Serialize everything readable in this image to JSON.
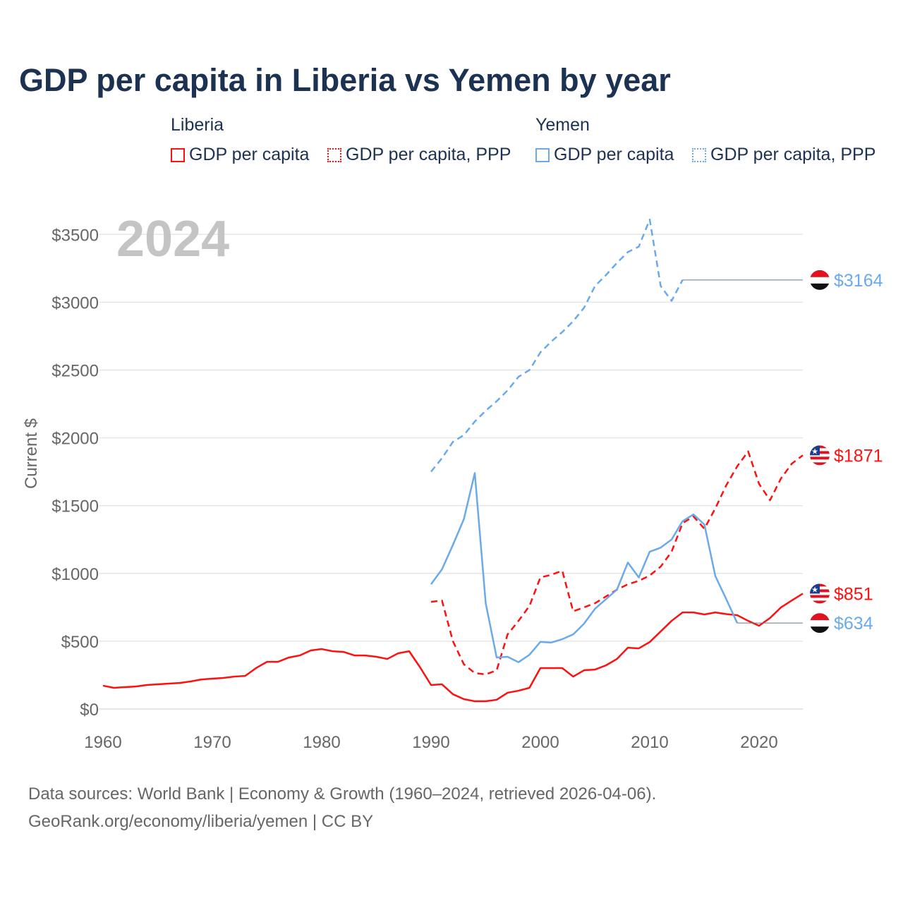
{
  "chart_data": {
    "type": "line",
    "title": "GDP per capita in Liberia vs Yemen by year",
    "ylabel": "Current $",
    "year_label": "2024",
    "xlim": [
      1960,
      2024
    ],
    "ylim": [
      0,
      3600
    ],
    "xticks": [
      1960,
      1970,
      1980,
      1990,
      2000,
      2010,
      2020
    ],
    "xtick_labels": [
      "1960",
      "1970",
      "1980",
      "1990",
      "2000",
      "2010",
      "2020"
    ],
    "yticks": [
      0,
      500,
      1000,
      1500,
      2000,
      2500,
      3000,
      3500
    ],
    "ytick_labels": [
      "$0",
      "$500",
      "$1000",
      "$1500",
      "$2000",
      "$2500",
      "$3000",
      "$3500"
    ],
    "legend": {
      "groups": [
        {
          "country": "Liberia",
          "items": [
            "GDP per capita",
            "GDP per capita, PPP"
          ]
        },
        {
          "country": "Yemen",
          "items": [
            "GDP per capita",
            "GDP per capita, PPP"
          ]
        }
      ],
      "placement": "top"
    },
    "colors": {
      "liberia": "#ff1010",
      "yemen": "#6aaaea"
    },
    "series": [
      {
        "name": "Liberia GDP per capita",
        "country": "liberia",
        "dash": false,
        "start": 1960,
        "values": [
          172,
          156,
          161,
          166,
          177,
          182,
          187,
          192,
          203,
          218,
          224,
          229,
          239,
          244,
          302,
          348,
          348,
          380,
          395,
          432,
          442,
          426,
          421,
          395,
          395,
          385,
          369,
          411,
          426,
          307,
          177,
          182,
          109,
          73,
          57,
          57,
          68,
          120,
          135,
          156,
          302,
          302,
          302,
          239,
          286,
          291,
          322,
          369,
          452,
          447,
          494,
          572,
          650,
          712,
          712,
          697,
          712,
          700,
          692,
          650,
          614,
          671,
          749,
          801,
          851
        ],
        "end_label": "$851",
        "extend_to": 2024
      },
      {
        "name": "Liberia GDP per capita, PPP",
        "country": "liberia",
        "dash": true,
        "start": 1990,
        "values": [
          790,
          800,
          500,
          330,
          265,
          255,
          285,
          550,
          650,
          760,
          970,
          990,
          1020,
          720,
          750,
          780,
          830,
          880,
          920,
          945,
          985,
          1050,
          1160,
          1370,
          1420,
          1330,
          1480,
          1650,
          1790,
          1900,
          1660,
          1540,
          1700,
          1810,
          1871
        ],
        "end_label": "$1871",
        "extend_to": 2024
      },
      {
        "name": "Yemen GDP per capita",
        "country": "yemen",
        "dash": false,
        "start": 1990,
        "values": [
          920,
          1030,
          1210,
          1400,
          1740,
          780,
          380,
          385,
          345,
          400,
          495,
          490,
          515,
          550,
          630,
          740,
          810,
          880,
          1080,
          970,
          1160,
          1190,
          1250,
          1385,
          1435,
          1360,
          980,
          810,
          634
        ],
        "end_label": "$634",
        "extend_to": 2024
      },
      {
        "name": "Yemen GDP per capita, PPP",
        "country": "yemen",
        "dash": true,
        "start": 1990,
        "values": [
          1750,
          1850,
          1970,
          2020,
          2120,
          2200,
          2270,
          2350,
          2450,
          2500,
          2630,
          2710,
          2780,
          2860,
          2960,
          3120,
          3200,
          3290,
          3370,
          3410,
          3610,
          3120,
          3010,
          3164
        ],
        "end_label": "$3164",
        "extend_to": 2024
      }
    ]
  },
  "footer": {
    "line1": "Data sources: World Bank | Economy & Growth (1960–2024, retrieved 2026-04-06).",
    "line2": "GeoRank.org/economy/liberia/yemen | CC BY"
  }
}
